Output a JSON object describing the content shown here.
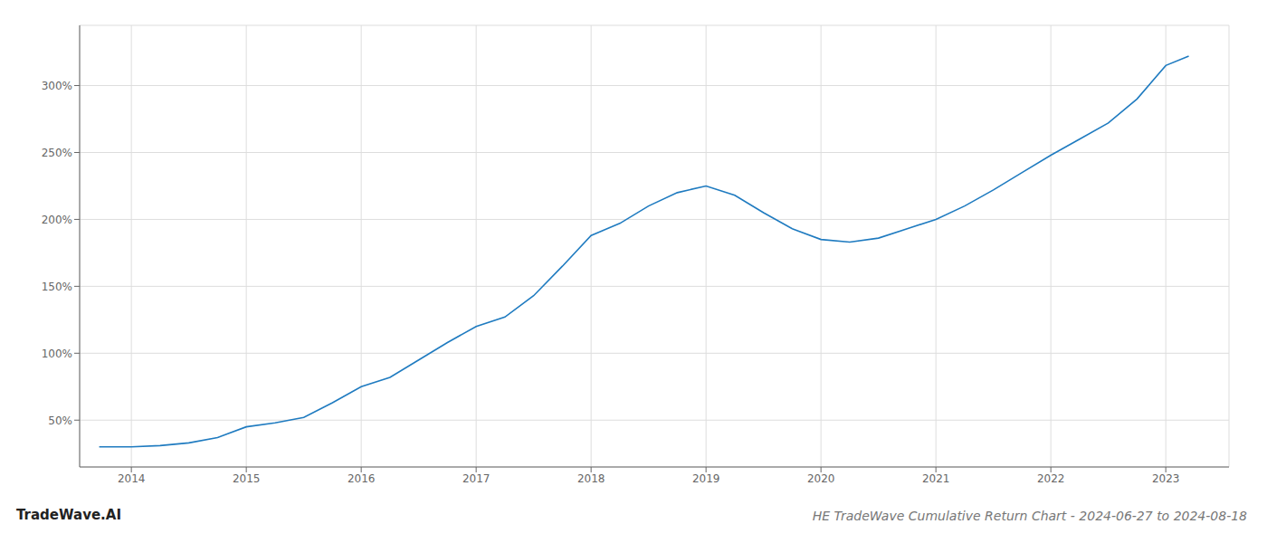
{
  "chart_data": {
    "type": "line",
    "title": "HE TradeWave Cumulative Return Chart - 2024-06-27 to 2024-08-18",
    "annotations": [
      "TradeWave.AI"
    ],
    "x": [
      2013.72,
      2014.0,
      2014.25,
      2014.5,
      2014.75,
      2015.0,
      2015.25,
      2015.5,
      2015.75,
      2016.0,
      2016.25,
      2016.5,
      2016.75,
      2017.0,
      2017.25,
      2017.5,
      2017.75,
      2018.0,
      2018.25,
      2018.5,
      2018.75,
      2019.0,
      2019.25,
      2019.5,
      2019.75,
      2020.0,
      2020.25,
      2020.5,
      2020.75,
      2021.0,
      2021.25,
      2021.5,
      2021.75,
      2022.0,
      2022.25,
      2022.5,
      2022.75,
      2023.0,
      2023.2
    ],
    "values": [
      30,
      30,
      31,
      33,
      37,
      45,
      48,
      52,
      63,
      75,
      82,
      95,
      108,
      120,
      127,
      143,
      165,
      188,
      197,
      210,
      220,
      225,
      218,
      205,
      193,
      185,
      183,
      186,
      193,
      200,
      210,
      222,
      235,
      248,
      260,
      272,
      290,
      315,
      322
    ],
    "color": "#1f7bc0",
    "xlim": [
      2013.55,
      2023.55
    ],
    "ylim": [
      15,
      345
    ],
    "xticks": [
      2014,
      2015,
      2016,
      2017,
      2018,
      2019,
      2020,
      2021,
      2022,
      2023
    ],
    "yticks": [
      {
        "value": 50,
        "label": "50%"
      },
      {
        "value": 100,
        "label": "100%"
      },
      {
        "value": 150,
        "label": "150%"
      },
      {
        "value": 200,
        "label": "200%"
      },
      {
        "value": 250,
        "label": "250%"
      },
      {
        "value": 300,
        "label": "300%"
      }
    ],
    "grid": true
  }
}
